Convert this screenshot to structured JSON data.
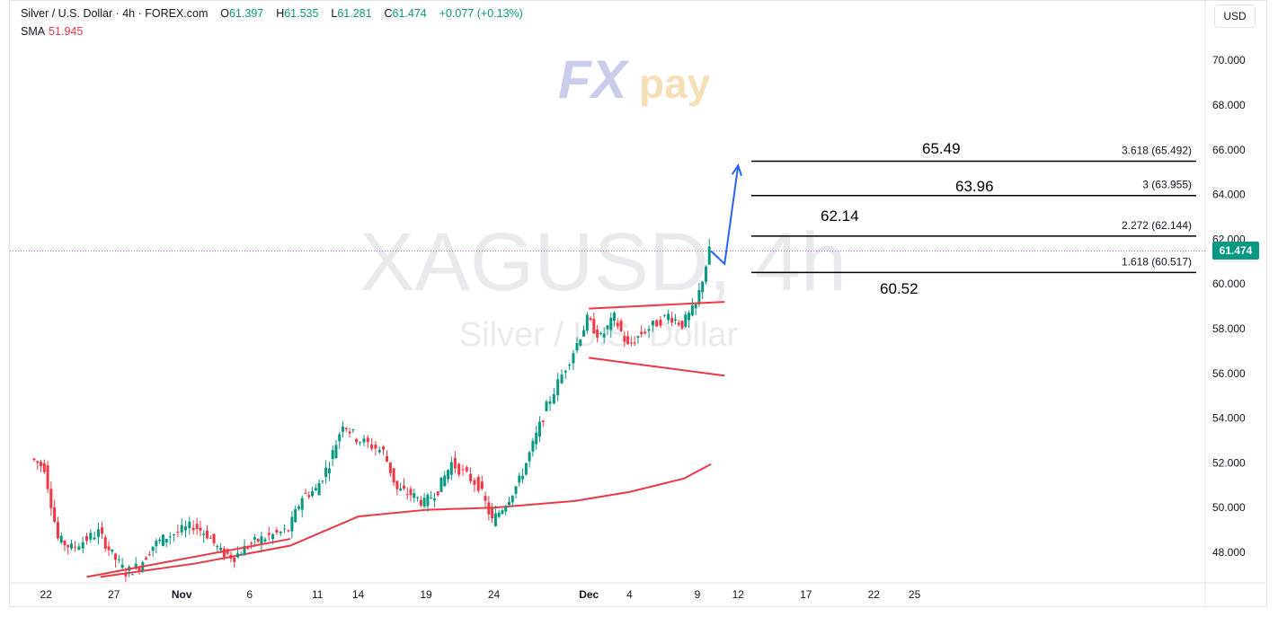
{
  "header": {
    "symbol_desc": "Silver / U.S. Dollar · 4h · FOREX.com",
    "open_label": "O",
    "open": "61.397",
    "high_label": "H",
    "high": "61.535",
    "low_label": "L",
    "low": "61.281",
    "close_label": "C",
    "close": "61.474",
    "change": "+0.077 (+0.13%)"
  },
  "indicator": {
    "name": "SMA",
    "value": "51.945"
  },
  "currency_button": "USD",
  "watermark": {
    "brand_fx": "FX",
    "brand_pay": "pay",
    "symbol": "XAGUSD, 4h",
    "desc": "Silver / U.S. Dollar"
  },
  "last_price": "61.474",
  "colors": {
    "up": "#089981",
    "down": "#f23645",
    "sma": "#f23645",
    "trendline": "#f23645",
    "arrow": "#2962ff",
    "fib": "#000000",
    "grid": "#e0e3eb"
  },
  "chart_data": {
    "type": "candlestick",
    "symbol": "XAGUSD",
    "timeframe": "4h",
    "y_ticks": [
      "48.000",
      "50.000",
      "52.000",
      "54.000",
      "56.000",
      "58.000",
      "60.000",
      "62.000",
      "64.000",
      "66.000",
      "68.000",
      "70.000"
    ],
    "ylim": [
      46.8,
      72.0
    ],
    "x_ticks": [
      "22",
      "27",
      "Nov",
      "6",
      "11",
      "14",
      "19",
      "24",
      "Dec",
      "4",
      "9",
      "12",
      "17",
      "22",
      "25"
    ],
    "x_tick_dates": [
      "2025-10-22",
      "2025-10-27",
      "2025-11-01",
      "2025-11-06",
      "2025-11-11",
      "2025-11-14",
      "2025-11-19",
      "2025-11-24",
      "2025-12-01",
      "2025-12-04",
      "2025-12-09",
      "2025-12-12",
      "2025-12-17",
      "2025-12-22",
      "2025-12-25"
    ],
    "price_path": [
      {
        "date": "2025-10-21",
        "price": 52.2
      },
      {
        "date": "2025-10-22",
        "price": 51.8
      },
      {
        "date": "2025-10-23",
        "price": 48.6
      },
      {
        "date": "2025-10-24",
        "price": 48.2
      },
      {
        "date": "2025-10-26",
        "price": 48.9
      },
      {
        "date": "2025-10-27",
        "price": 47.9
      },
      {
        "date": "2025-10-28",
        "price": 47.1
      },
      {
        "date": "2025-10-29",
        "price": 47.4
      },
      {
        "date": "2025-10-30",
        "price": 48.3
      },
      {
        "date": "2025-10-31",
        "price": 48.7
      },
      {
        "date": "2025-11-02",
        "price": 49.2
      },
      {
        "date": "2025-11-03",
        "price": 48.8
      },
      {
        "date": "2025-11-04",
        "price": 48.0
      },
      {
        "date": "2025-11-05",
        "price": 47.8
      },
      {
        "date": "2025-11-06",
        "price": 48.3
      },
      {
        "date": "2025-11-07",
        "price": 48.6
      },
      {
        "date": "2025-11-09",
        "price": 49.0
      },
      {
        "date": "2025-11-10",
        "price": 50.5
      },
      {
        "date": "2025-11-11",
        "price": 50.8
      },
      {
        "date": "2025-11-12",
        "price": 52.0
      },
      {
        "date": "2025-11-13",
        "price": 53.8
      },
      {
        "date": "2025-11-14",
        "price": 53.1
      },
      {
        "date": "2025-11-16",
        "price": 52.5
      },
      {
        "date": "2025-11-17",
        "price": 50.8
      },
      {
        "date": "2025-11-18",
        "price": 50.6
      },
      {
        "date": "2025-11-19",
        "price": 50.2
      },
      {
        "date": "2025-11-20",
        "price": 50.8
      },
      {
        "date": "2025-11-21",
        "price": 52.0
      },
      {
        "date": "2025-11-23",
        "price": 51.0
      },
      {
        "date": "2025-11-24",
        "price": 49.4
      },
      {
        "date": "2025-11-25",
        "price": 50.2
      },
      {
        "date": "2025-11-26",
        "price": 51.2
      },
      {
        "date": "2025-11-27",
        "price": 52.8
      },
      {
        "date": "2025-11-28",
        "price": 54.5
      },
      {
        "date": "2025-11-30",
        "price": 57.0
      },
      {
        "date": "2025-12-01",
        "price": 58.4
      },
      {
        "date": "2025-12-02",
        "price": 57.6
      },
      {
        "date": "2025-12-03",
        "price": 58.5
      },
      {
        "date": "2025-12-04",
        "price": 57.2
      },
      {
        "date": "2025-12-05",
        "price": 57.8
      },
      {
        "date": "2025-12-07",
        "price": 58.6
      },
      {
        "date": "2025-12-08",
        "price": 58.2
      },
      {
        "date": "2025-12-09",
        "price": 59.0
      },
      {
        "date": "2025-12-10",
        "price": 61.474
      }
    ],
    "sma_path": [
      {
        "date": "2025-10-26",
        "price": 46.9
      },
      {
        "date": "2025-11-02",
        "price": 47.5
      },
      {
        "date": "2025-11-09",
        "price": 48.3
      },
      {
        "date": "2025-11-14",
        "price": 49.6
      },
      {
        "date": "2025-11-19",
        "price": 49.9
      },
      {
        "date": "2025-11-24",
        "price": 50.0
      },
      {
        "date": "2025-11-30",
        "price": 50.3
      },
      {
        "date": "2025-12-04",
        "price": 50.7
      },
      {
        "date": "2025-12-08",
        "price": 51.3
      },
      {
        "date": "2025-12-10",
        "price": 51.945
      }
    ],
    "trendlines": [
      {
        "name": "support",
        "from": {
          "date": "2025-10-25",
          "price": 46.9
        },
        "to": {
          "date": "2025-11-09",
          "price": 48.6
        }
      },
      {
        "name": "flag-upper",
        "from": {
          "date": "2025-12-01",
          "price": 58.9
        },
        "to": {
          "date": "2025-12-11",
          "price": 59.2
        }
      },
      {
        "name": "flag-lower",
        "from": {
          "date": "2025-12-01",
          "price": 56.7
        },
        "to": {
          "date": "2025-12-11",
          "price": 55.9
        }
      }
    ],
    "projection_arrow": [
      {
        "date": "2025-12-10",
        "price": 61.474
      },
      {
        "date": "2025-12-11",
        "price": 60.9
      },
      {
        "date": "2025-12-12",
        "price": 65.3
      }
    ],
    "fib_levels": [
      {
        "ratio": "1.618",
        "price": 60.517,
        "label": "1.618 (60.517)",
        "target": "60.52"
      },
      {
        "ratio": "2.272",
        "price": 62.144,
        "label": "2.272 (62.144)",
        "target": "62.14"
      },
      {
        "ratio": "3",
        "price": 63.955,
        "label": "3 (63.955)",
        "target": "63.96"
      },
      {
        "ratio": "3.618",
        "price": 65.492,
        "label": "3.618 (65.492)",
        "target": "65.49"
      }
    ],
    "last_price": 61.474
  }
}
